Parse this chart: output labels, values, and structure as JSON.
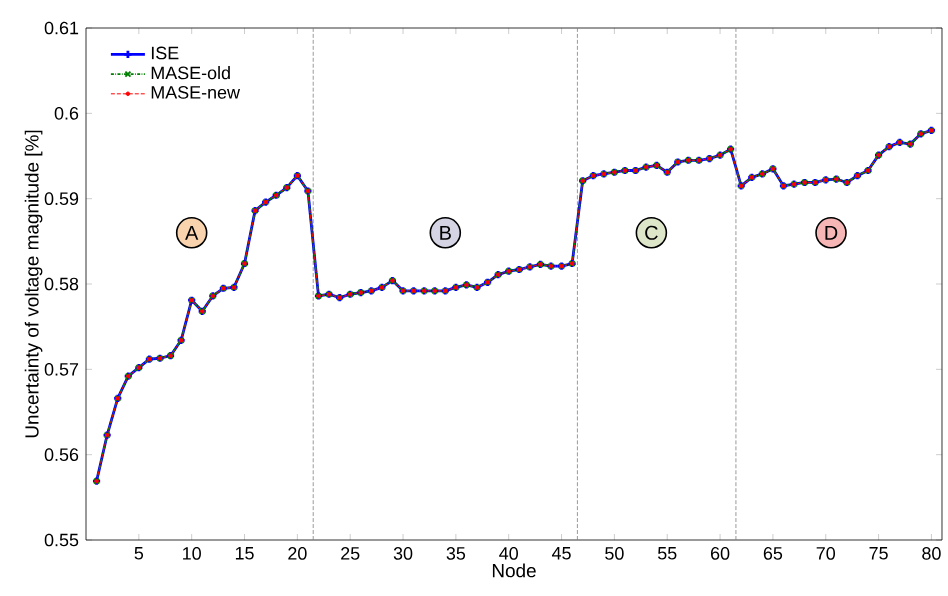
{
  "chart_data": {
    "type": "line",
    "xlabel": "Node",
    "ylabel": "Uncertainty of voltage magnitude [%]",
    "x": [
      1,
      2,
      3,
      4,
      5,
      6,
      7,
      8,
      9,
      10,
      11,
      12,
      13,
      14,
      15,
      16,
      17,
      18,
      19,
      20,
      21,
      22,
      23,
      24,
      25,
      26,
      27,
      28,
      29,
      30,
      31,
      32,
      33,
      34,
      35,
      36,
      37,
      38,
      39,
      40,
      41,
      42,
      43,
      44,
      45,
      46,
      47,
      48,
      49,
      50,
      51,
      52,
      53,
      54,
      55,
      56,
      57,
      58,
      59,
      60,
      61,
      62,
      63,
      64,
      65,
      66,
      67,
      68,
      69,
      70,
      71,
      72,
      73,
      74,
      75,
      76,
      77,
      78,
      79,
      80
    ],
    "series": [
      {
        "name": "ISE",
        "color": "#0000ff",
        "line_style": "solid",
        "marker": "cross",
        "values": [
          0.5569,
          0.5623,
          0.5666,
          0.5692,
          0.5702,
          0.5712,
          0.5713,
          0.5716,
          0.5734,
          0.5781,
          0.5768,
          0.5786,
          0.5795,
          0.5796,
          0.5824,
          0.5886,
          0.5896,
          0.5904,
          0.5913,
          0.5927,
          0.5909,
          0.5786,
          0.5788,
          0.5784,
          0.5788,
          0.579,
          0.5792,
          0.5796,
          0.5804,
          0.5792,
          0.5792,
          0.5792,
          0.5792,
          0.5792,
          0.5796,
          0.5799,
          0.5796,
          0.5802,
          0.5811,
          0.5815,
          0.5817,
          0.582,
          0.5823,
          0.5821,
          0.5821,
          0.5824,
          0.5921,
          0.5927,
          0.5929,
          0.5931,
          0.5933,
          0.5933,
          0.5937,
          0.5939,
          0.5931,
          0.5943,
          0.5945,
          0.5945,
          0.5947,
          0.5951,
          0.5958,
          0.5915,
          0.5925,
          0.5929,
          0.5935,
          0.5915,
          0.5917,
          0.5919,
          0.5919,
          0.5922,
          0.5923,
          0.5919,
          0.5927,
          0.5933,
          0.5951,
          0.5961,
          0.5966,
          0.5964,
          0.5976,
          0.598
        ]
      },
      {
        "name": "MASE-old",
        "color": "#008000",
        "line_style": "dotted",
        "marker": "x",
        "values": [
          0.5569,
          0.5623,
          0.5666,
          0.5692,
          0.5702,
          0.5712,
          0.5713,
          0.5716,
          0.5734,
          0.5781,
          0.5768,
          0.5786,
          0.5795,
          0.5796,
          0.5824,
          0.5886,
          0.5896,
          0.5904,
          0.5913,
          0.5927,
          0.5909,
          0.5786,
          0.5788,
          0.5784,
          0.5788,
          0.579,
          0.5792,
          0.5796,
          0.5804,
          0.5792,
          0.5792,
          0.5792,
          0.5792,
          0.5792,
          0.5796,
          0.5799,
          0.5796,
          0.5802,
          0.5811,
          0.5815,
          0.5817,
          0.582,
          0.5823,
          0.5821,
          0.5821,
          0.5824,
          0.5921,
          0.5927,
          0.5929,
          0.5931,
          0.5933,
          0.5933,
          0.5937,
          0.5939,
          0.5931,
          0.5943,
          0.5945,
          0.5945,
          0.5947,
          0.5951,
          0.5958,
          0.5915,
          0.5925,
          0.5929,
          0.5935,
          0.5915,
          0.5917,
          0.5919,
          0.5919,
          0.5922,
          0.5923,
          0.5919,
          0.5927,
          0.5933,
          0.5951,
          0.5961,
          0.5966,
          0.5964,
          0.5976,
          0.598
        ]
      },
      {
        "name": "MASE-new",
        "color": "#ff0000",
        "line_style": "dashed",
        "marker": "circle",
        "values": [
          0.5569,
          0.5623,
          0.5666,
          0.5692,
          0.5702,
          0.5712,
          0.5713,
          0.5716,
          0.5734,
          0.5781,
          0.5768,
          0.5786,
          0.5795,
          0.5796,
          0.5824,
          0.5886,
          0.5896,
          0.5904,
          0.5913,
          0.5927,
          0.5909,
          0.5786,
          0.5788,
          0.5784,
          0.5788,
          0.579,
          0.5792,
          0.5796,
          0.5804,
          0.5792,
          0.5792,
          0.5792,
          0.5792,
          0.5792,
          0.5796,
          0.5799,
          0.5796,
          0.5802,
          0.5811,
          0.5815,
          0.5817,
          0.582,
          0.5823,
          0.5821,
          0.5821,
          0.5824,
          0.5921,
          0.5927,
          0.5929,
          0.5931,
          0.5933,
          0.5933,
          0.5937,
          0.5939,
          0.5931,
          0.5943,
          0.5945,
          0.5945,
          0.5947,
          0.5951,
          0.5958,
          0.5915,
          0.5925,
          0.5929,
          0.5935,
          0.5915,
          0.5917,
          0.5919,
          0.5919,
          0.5922,
          0.5923,
          0.5919,
          0.5927,
          0.5933,
          0.5951,
          0.5961,
          0.5966,
          0.5964,
          0.5976,
          0.598
        ]
      }
    ],
    "xlim": [
      0,
      81
    ],
    "ylim": [
      0.55,
      0.61
    ],
    "xticks": [
      5,
      10,
      15,
      20,
      25,
      30,
      35,
      40,
      45,
      50,
      55,
      60,
      65,
      70,
      75,
      80
    ],
    "yticks": [
      0.55,
      0.56,
      0.57,
      0.58,
      0.59,
      0.6,
      0.61
    ],
    "ref_lines": [
      {
        "axis": "x",
        "value": 21.5,
        "color": "#808080",
        "line_style": "dashed"
      },
      {
        "axis": "x",
        "value": 46.5,
        "color": "#808080",
        "line_style": "dashed"
      },
      {
        "axis": "x",
        "value": 61.5,
        "color": "#808080",
        "line_style": "dashed"
      }
    ],
    "annotations": [
      {
        "text": "A",
        "x": 10,
        "y": 0.586
      },
      {
        "text": "B",
        "x": 34,
        "y": 0.586
      },
      {
        "text": "C",
        "x": 53.5,
        "y": 0.586
      },
      {
        "text": "D",
        "x": 70.5,
        "y": 0.586
      }
    ],
    "legend": "top left",
    "grid": false
  }
}
